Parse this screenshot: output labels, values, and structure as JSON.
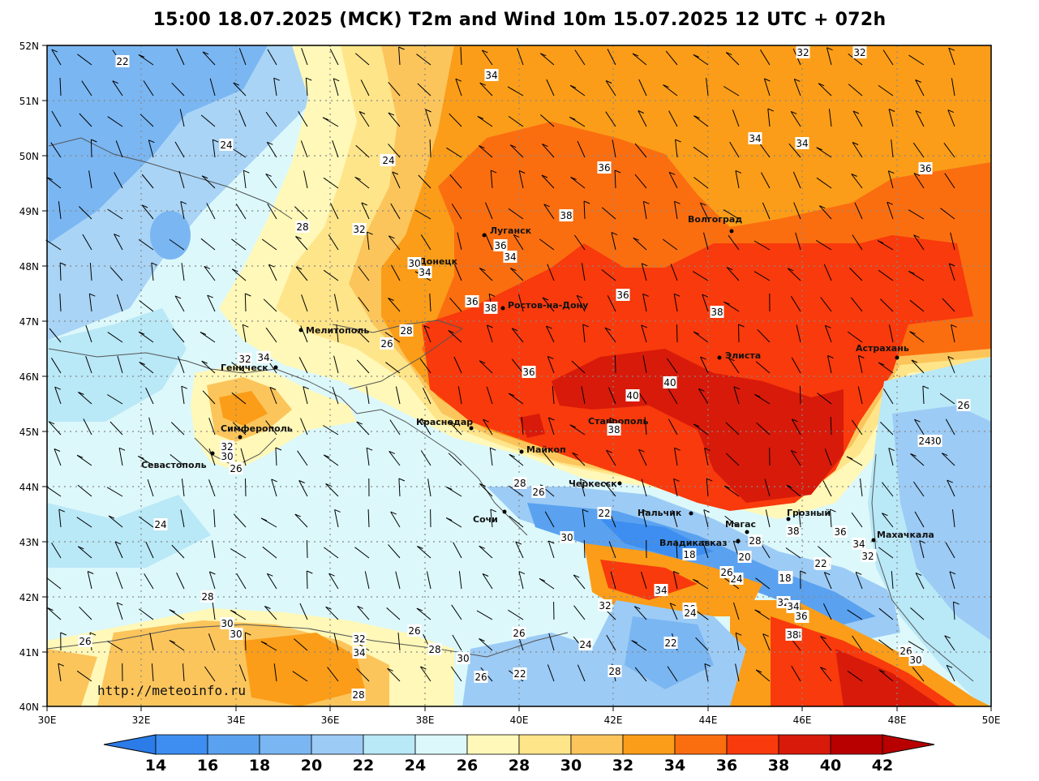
{
  "title": "15:00 18.07.2025 (МСК) T2m and Wind 10m 15.07.2025 12 UTC + 072h",
  "watermark": "http://meteoinfo.ru",
  "axes": {
    "lat_labels": [
      "52N",
      "51N",
      "50N",
      "49N",
      "48N",
      "47N",
      "46N",
      "45N",
      "44N",
      "43N",
      "42N",
      "41N",
      "40N"
    ],
    "lon_labels": [
      "30E",
      "32E",
      "34E",
      "36E",
      "38E",
      "40E",
      "42E",
      "44E",
      "46E",
      "48E",
      "50E"
    ]
  },
  "colorbar": {
    "levels": [
      "14",
      "16",
      "18",
      "20",
      "22",
      "24",
      "26",
      "28",
      "30",
      "32",
      "34",
      "36",
      "38",
      "40",
      "42"
    ],
    "colors": [
      "#2b7be8",
      "#3d8ef0",
      "#5aa2f0",
      "#7ab6f2",
      "#9ccbf5",
      "#b9e8f7",
      "#dcf8fb",
      "#fff8b8",
      "#ffe58a",
      "#fbc55c",
      "#fb9d18",
      "#fb6e10",
      "#f83a0c",
      "#d81a0a",
      "#b80000"
    ]
  },
  "cities": [
    {
      "name": "Луганск"
    },
    {
      "name": "Донецк"
    },
    {
      "name": "Ростов-на-Дону"
    },
    {
      "name": "Волгоград"
    },
    {
      "name": "Мелитополь"
    },
    {
      "name": "Геническ"
    },
    {
      "name": "Элиста"
    },
    {
      "name": "Астрахань"
    },
    {
      "name": "Симферополь"
    },
    {
      "name": "Севастополь"
    },
    {
      "name": "Краснодар"
    },
    {
      "name": "Майкоп"
    },
    {
      "name": "Ставрополь"
    },
    {
      "name": "Черкесск"
    },
    {
      "name": "Сочи"
    },
    {
      "name": "Нальчик"
    },
    {
      "name": "Магас"
    },
    {
      "name": "Грозный"
    },
    {
      "name": "Владикавказ"
    },
    {
      "name": "Махачкала"
    }
  ],
  "isotherm_labels": [
    "22",
    "24",
    "34",
    "32",
    "32",
    "30",
    "24",
    "36",
    "34",
    "34",
    "36",
    "28",
    "32",
    "38",
    "36",
    "34",
    "30",
    "34",
    "36",
    "38",
    "36",
    "38",
    "28",
    "26",
    "32",
    "34",
    "40",
    "40",
    "36",
    "38",
    "26",
    "32",
    "30",
    "28",
    "26",
    "24",
    "22",
    "28",
    "30",
    "38",
    "36",
    "34",
    "32",
    "30",
    "24",
    "28",
    "22",
    "24",
    "18",
    "20",
    "28",
    "26",
    "38",
    "36",
    "34",
    "32",
    "22",
    "18",
    "26",
    "24",
    "34",
    "32",
    "26",
    "24",
    "28",
    "30",
    "30",
    "26",
    "26",
    "32",
    "34",
    "26",
    "28",
    "30",
    "26",
    "22",
    "24",
    "28",
    "22",
    "38",
    "36",
    "34",
    "32",
    "26",
    "30",
    "28"
  ]
}
